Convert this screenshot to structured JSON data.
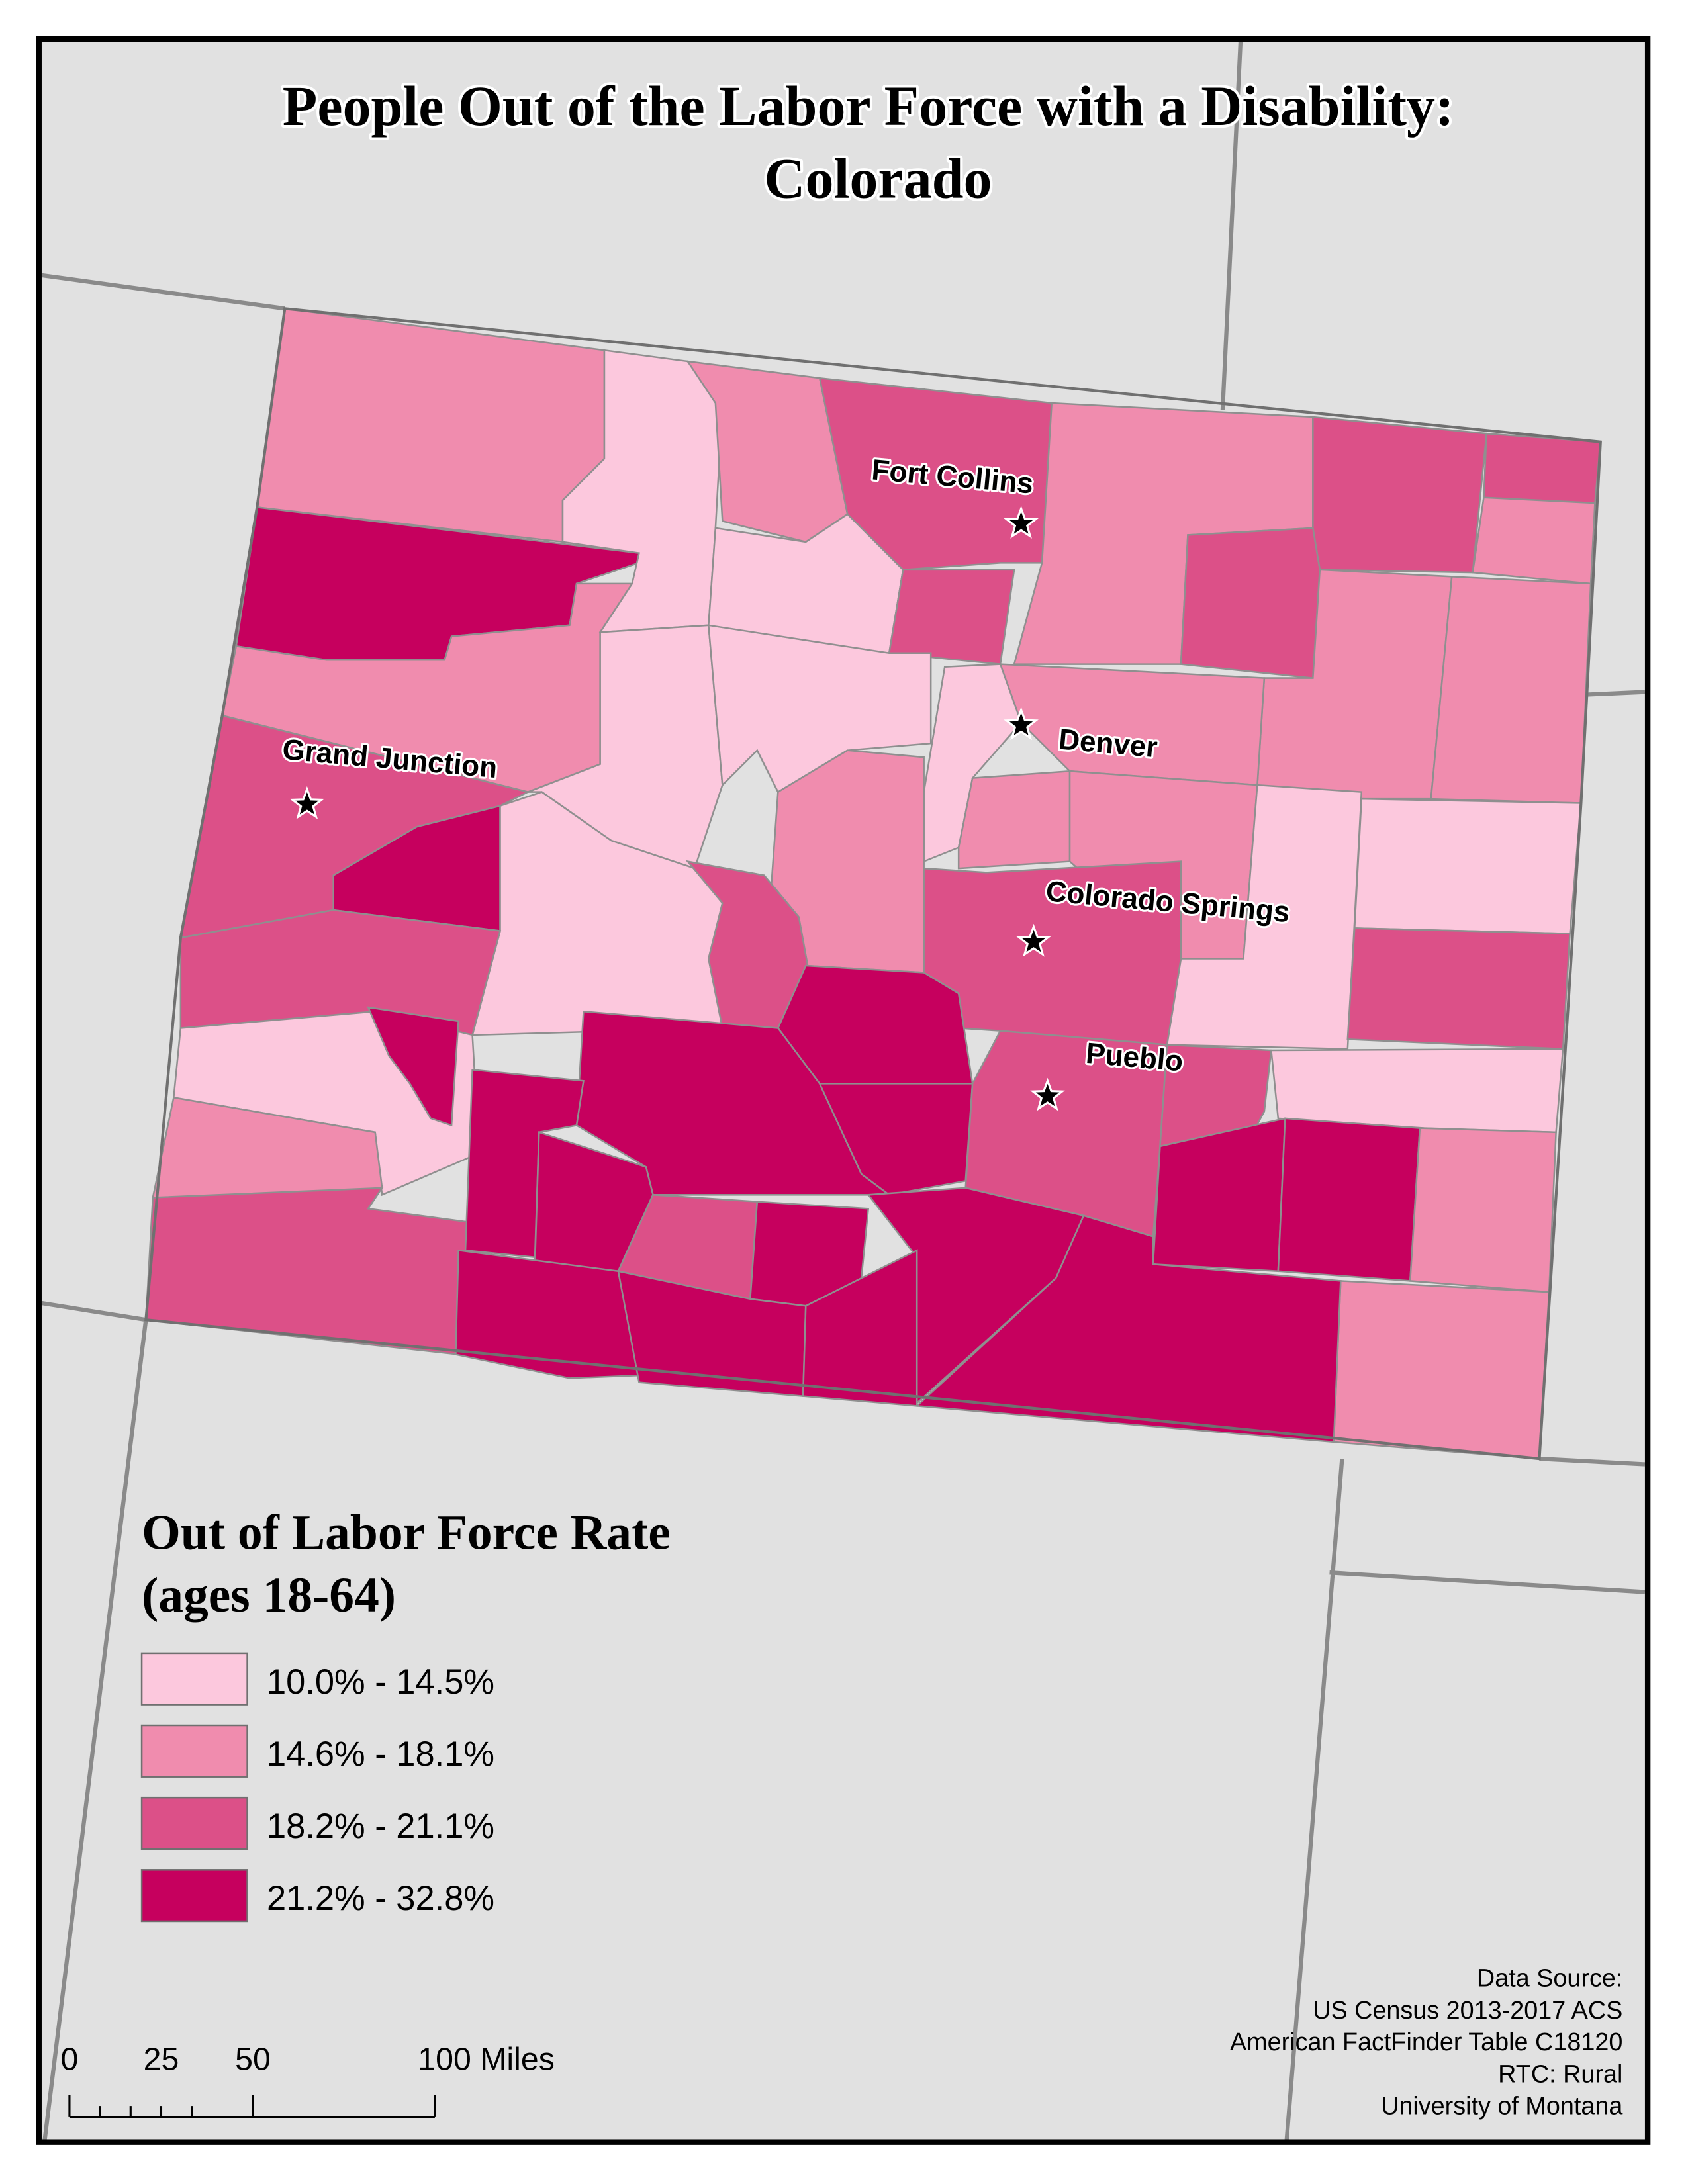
{
  "title": [
    "People Out of the Labor Force with a Disability:",
    "Colorado"
  ],
  "cities": [
    {
      "name": "Fort Collins"
    },
    {
      "name": "Denver"
    },
    {
      "name": "Grand Junction"
    },
    {
      "name": "Colorado Springs"
    },
    {
      "name": "Pueblo"
    }
  ],
  "legend": {
    "title": [
      "Out of Labor Force Rate",
      "(ages 18-64)"
    ],
    "items": [
      {
        "label": "10.0% - 14.5%",
        "color": "#fcc8dd"
      },
      {
        "label": "14.6% - 18.1%",
        "color": "#f08cae"
      },
      {
        "label": "18.2% - 21.1%",
        "color": "#dc5088"
      },
      {
        "label": "21.2% - 32.8%",
        "color": "#c6005e"
      }
    ]
  },
  "scale_bar": {
    "labels": [
      "0",
      "25",
      "50",
      "100 Miles"
    ]
  },
  "source": [
    "Data Source:",
    "US Census 2013-2017 ACS",
    "American FactFinder Table C18120",
    "RTC: Rural",
    "University of Montana"
  ]
}
